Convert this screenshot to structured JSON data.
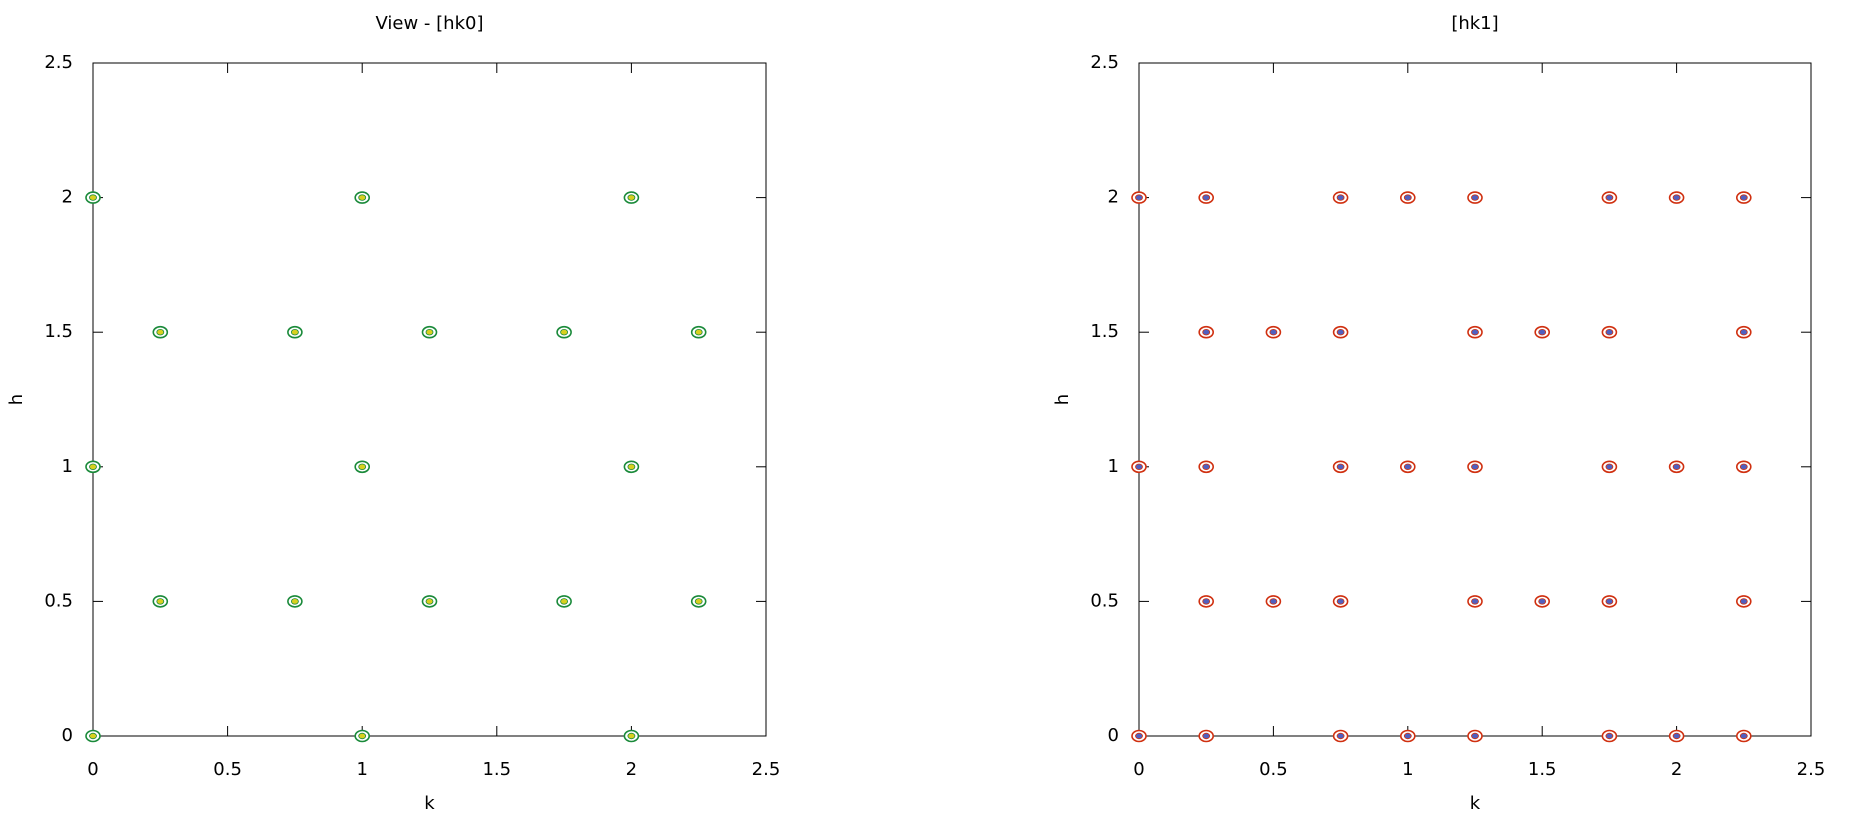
{
  "chart_data": [
    {
      "type": "scatter",
      "title": "View - [hk0]",
      "x_label": "k",
      "y_label": "h",
      "x": [
        0,
        1,
        2,
        0.25,
        0.75,
        1.25,
        1.75,
        2.25,
        0,
        1,
        2,
        0.25,
        0.75,
        1.25,
        1.75,
        2.25,
        0,
        1,
        2
      ],
      "values": [
        2,
        2,
        2,
        1.5,
        1.5,
        1.5,
        1.5,
        1.5,
        1,
        1,
        1,
        0.5,
        0.5,
        0.5,
        0.5,
        0.5,
        0,
        0,
        0
      ],
      "color": "#1a8a3a",
      "core_color": "#d8d020",
      "xlim": [
        0,
        2.5
      ],
      "ylim": [
        0,
        2.5
      ],
      "xticks": [
        0,
        0.5,
        1,
        1.5,
        2,
        2.5
      ],
      "yticks": [
        0,
        0.5,
        1,
        1.5,
        2,
        2.5
      ]
    },
    {
      "type": "scatter",
      "title": "[hk1]",
      "x_label": "k",
      "y_label": "h",
      "x": [
        0,
        0.25,
        0.75,
        1,
        1.25,
        1.75,
        2,
        2.25,
        0.25,
        0.5,
        0.75,
        1.25,
        1.5,
        1.75,
        2.25,
        0,
        0.25,
        0.75,
        1,
        1.25,
        1.75,
        2,
        2.25,
        0.25,
        0.5,
        0.75,
        1.25,
        1.5,
        1.75,
        2.25,
        0,
        0.25,
        0.75,
        1,
        1.25,
        1.75,
        2,
        2.25
      ],
      "values": [
        2,
        2,
        2,
        2,
        2,
        2,
        2,
        2,
        1.5,
        1.5,
        1.5,
        1.5,
        1.5,
        1.5,
        1.5,
        1,
        1,
        1,
        1,
        1,
        1,
        1,
        1,
        0.5,
        0.5,
        0.5,
        0.5,
        0.5,
        0.5,
        0.5,
        0,
        0,
        0,
        0,
        0,
        0,
        0,
        0
      ],
      "color": "#d03010",
      "core_color": "#5060c0",
      "xlim": [
        0,
        2.5
      ],
      "ylim": [
        0,
        2.5
      ],
      "xticks": [
        0,
        0.5,
        1,
        1.5,
        2,
        2.5
      ],
      "yticks": [
        0,
        0.5,
        1,
        1.5,
        2,
        2.5
      ]
    }
  ]
}
